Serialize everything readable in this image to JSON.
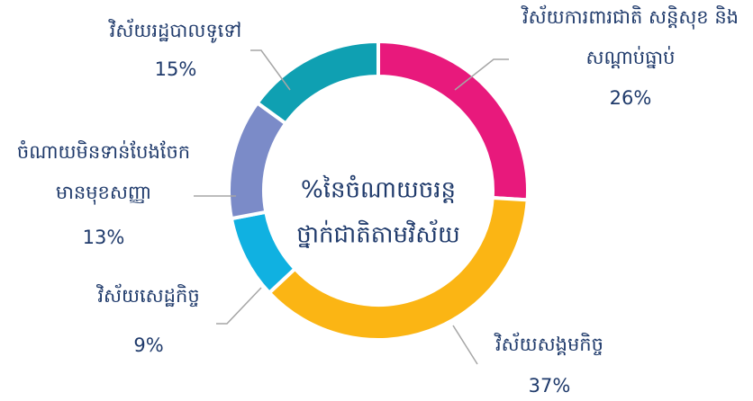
{
  "chart_data": {
    "type": "donut",
    "title": [
      "%នៃចំណាយចរន្ត",
      "ថ្នាក់ជាតិតាមវិស័យ"
    ],
    "categories": [
      [
        "វិស័យការពារជាតិ សន្តិសុខ និង",
        "សណ្តាប់ធ្នាប់"
      ],
      [
        "វិស័យសង្គមកិច្ច"
      ],
      [
        "វិស័យសេដ្ឋកិច្ច"
      ],
      [
        "ចំណាយមិនទាន់បែងចែក",
        "មានមុខសញ្ញា"
      ],
      [
        "វិស័យរដ្ឋបាលទូទៅ"
      ]
    ],
    "values": [
      26,
      37,
      9,
      13,
      15
    ],
    "value_labels": [
      "26%",
      "37%",
      "9%",
      "13%",
      "15%"
    ],
    "colors": [
      "#e8197c",
      "#fbb514",
      "#10b1e1",
      "#7b8bc8",
      "#0fa0b2"
    ]
  }
}
